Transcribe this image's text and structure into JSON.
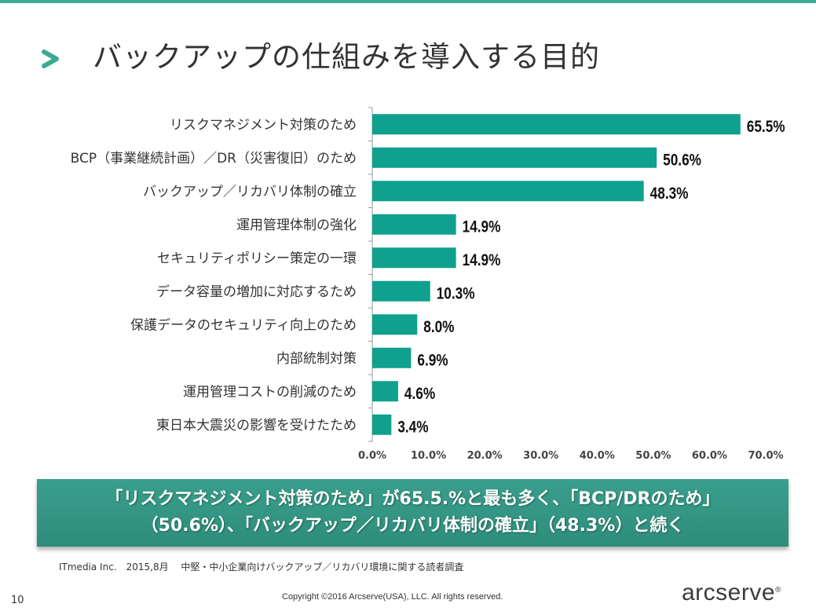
{
  "header": {
    "title": "バックアップの仕組みを導入する目的",
    "accent_color": "#3aaa94"
  },
  "chart_data": {
    "type": "bar",
    "orientation": "horizontal",
    "categories": [
      "リスクマネジメント対策のため",
      "BCP（事業継続計画）／DR（災害復旧）のため",
      "バックアップ／リカバリ体制の確立",
      "運用管理体制の強化",
      "セキュリティポリシー策定の一環",
      "データ容量の増加に対応するため",
      "保護データのセキュリティ向上のため",
      "内部統制対策",
      "運用管理コストの削減のため",
      "東日本大震災の影響を受けたため"
    ],
    "values": [
      65.5,
      50.6,
      48.3,
      14.9,
      14.9,
      10.3,
      8.0,
      6.9,
      4.6,
      3.4
    ],
    "value_labels": [
      "65.5%",
      "50.6%",
      "48.3%",
      "14.9%",
      "14.9%",
      "10.3%",
      "8.0%",
      "6.9%",
      "4.6%",
      "3.4%"
    ],
    "x_ticks": [
      "0.0%",
      "10.0%",
      "20.0%",
      "30.0%",
      "40.0%",
      "50.0%",
      "60.0%",
      "70.0%"
    ],
    "xlim": [
      0,
      70
    ],
    "bar_color": "#0fa08e",
    "grid": false
  },
  "banner": {
    "line1": "「リスクマネジメント対策のため」が65.5.%と最も多く、「BCP/DRのため」",
    "line2": "（50.6%）、「バックアップ／リカバリ体制の確立」（48.3%）と続く"
  },
  "footer": {
    "source": "ITmedia Inc.　2015,8月　 中堅・中小企業向けバックアップ／リカバリ環境に関する読者調査",
    "page_number": "10",
    "copyright": "Copyright ©2016 Arcserve(USA), LLC. All rights reserved.",
    "logo_text": "arcserve",
    "logo_mark": "®"
  }
}
